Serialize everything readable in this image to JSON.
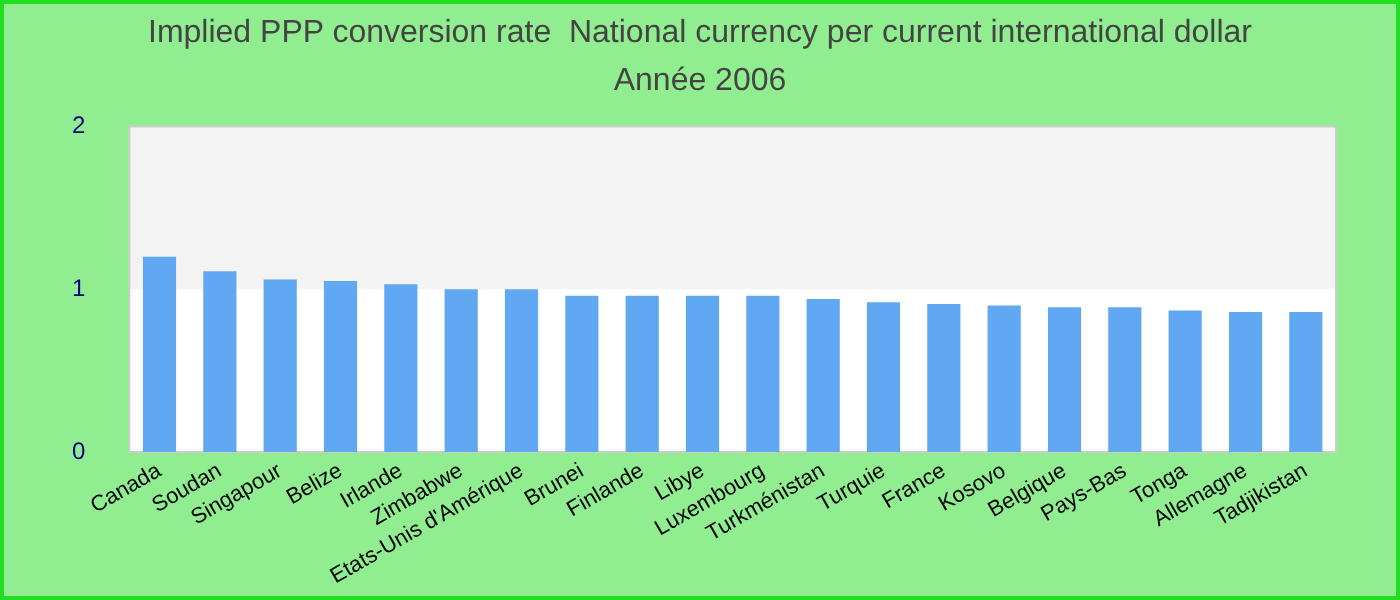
{
  "chart_data": {
    "type": "bar",
    "title": "Implied PPP conversion rate  National currency per current international dollar",
    "subtitle": "Année 2006",
    "categories": [
      "Canada",
      "Soudan",
      "Singapour",
      "Belize",
      "Irlande",
      "Zimbabwe",
      "Etats-Unis d'Amérique",
      "Brunei",
      "Finlande",
      "Libye",
      "Luxembourg",
      "Turkménistan",
      "Turquie",
      "France",
      "Kosovo",
      "Belgique",
      "Pays-Bas",
      "Tonga",
      "Allemagne",
      "Tadjikistan"
    ],
    "values": [
      1.2,
      1.11,
      1.06,
      1.05,
      1.03,
      1.0,
      1.0,
      0.96,
      0.96,
      0.96,
      0.96,
      0.94,
      0.92,
      0.91,
      0.9,
      0.89,
      0.89,
      0.87,
      0.86,
      0.86
    ],
    "color": "#60a8f2",
    "ylim": [
      0,
      2
    ],
    "yticks": [
      0,
      1,
      2
    ],
    "bands": [
      {
        "axis": "y",
        "from": 1,
        "to": 2,
        "color": "#f3f3f3"
      }
    ]
  }
}
